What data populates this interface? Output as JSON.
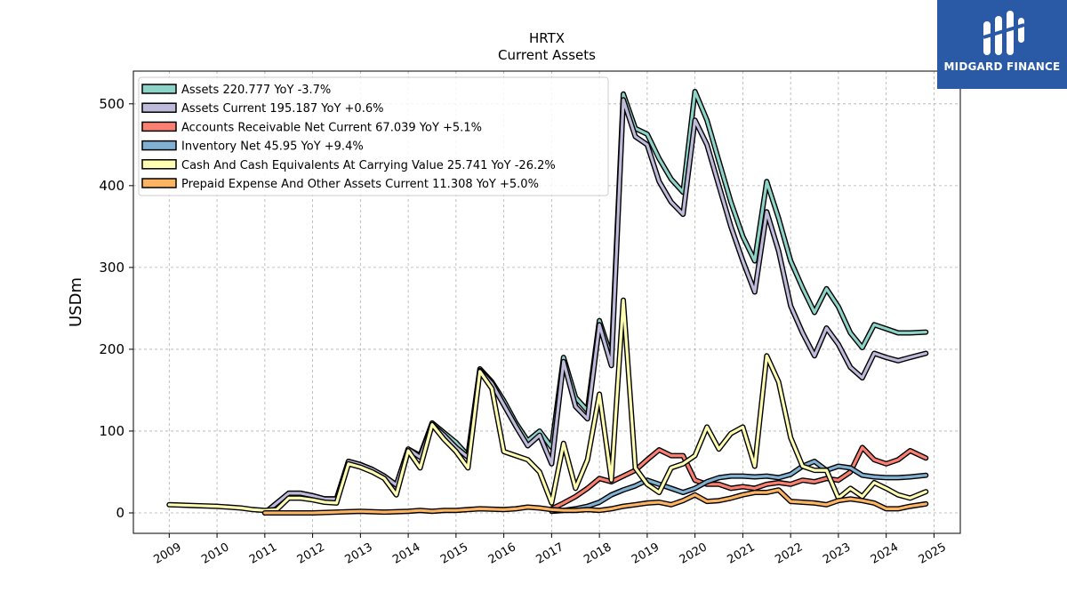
{
  "brand": {
    "name": "MIDGARD FINANCE",
    "icon": "midgard-logo-icon"
  },
  "chart_data": {
    "type": "line",
    "title": "HRTX",
    "subtitle": "Current  Assets",
    "xlabel": "",
    "ylabel": "USDm",
    "xlim": [
      2008.25,
      2025.55
    ],
    "ylim": [
      -25,
      540
    ],
    "yticks": [
      0,
      100,
      200,
      300,
      400,
      500
    ],
    "xticks": [
      2009,
      2010,
      2011,
      2012,
      2013,
      2014,
      2015,
      2016,
      2017,
      2018,
      2019,
      2020,
      2021,
      2022,
      2023,
      2024,
      2025
    ],
    "grid": true,
    "legend_position": "top-left",
    "series": [
      {
        "name": "Assets  220.777 YoY -3.7%",
        "color": "#8dd3c7",
        "x": [
          2011.0,
          2011.5,
          2011.75,
          2012.0,
          2012.25,
          2012.5,
          2012.75,
          2013.0,
          2013.25,
          2013.5,
          2013.75,
          2014.0,
          2014.25,
          2014.5,
          2014.75,
          2015.0,
          2015.25,
          2015.5,
          2015.75,
          2016.0,
          2016.25,
          2016.5,
          2016.75,
          2017.0,
          2017.25,
          2017.5,
          2017.75,
          2018.0,
          2018.25,
          2018.5,
          2018.75,
          2019.0,
          2019.25,
          2019.5,
          2019.75,
          2020.0,
          2020.25,
          2020.5,
          2020.75,
          2021.0,
          2021.25,
          2021.5,
          2021.75,
          2022.0,
          2022.25,
          2022.5,
          2022.75,
          2023.0,
          2023.25,
          2023.5,
          2023.75,
          2024.0,
          2024.25,
          2024.5,
          2024.83
        ],
        "values": [
          0,
          24,
          24,
          21,
          17,
          17,
          63,
          59,
          53,
          45,
          34,
          78,
          70,
          110,
          98,
          86,
          70,
          176,
          160,
          137,
          110,
          88,
          100,
          80,
          190,
          141,
          125,
          235,
          190,
          512,
          470,
          463,
          433,
          408,
          392,
          515,
          480,
          430,
          380,
          338,
          308,
          405,
          360,
          308,
          275,
          245,
          274,
          252,
          220,
          202,
          230,
          225,
          220,
          220,
          221
        ]
      },
      {
        "name": "Assets Current  195.187 YoY +0.6%",
        "color": "#bebada",
        "x": [
          2011.0,
          2011.5,
          2011.75,
          2012.0,
          2012.25,
          2012.5,
          2012.75,
          2013.0,
          2013.25,
          2013.5,
          2013.75,
          2014.0,
          2014.25,
          2014.5,
          2014.75,
          2015.0,
          2015.25,
          2015.5,
          2015.75,
          2016.0,
          2016.25,
          2016.5,
          2016.75,
          2017.0,
          2017.25,
          2017.5,
          2017.75,
          2018.0,
          2018.25,
          2018.5,
          2018.75,
          2019.0,
          2019.25,
          2019.5,
          2019.75,
          2020.0,
          2020.25,
          2020.5,
          2020.75,
          2021.0,
          2021.25,
          2021.5,
          2021.75,
          2022.0,
          2022.25,
          2022.5,
          2022.75,
          2023.0,
          2023.25,
          2023.5,
          2023.75,
          2024.0,
          2024.25,
          2024.5,
          2024.83
        ],
        "values": [
          0,
          24,
          24,
          21,
          17,
          17,
          63,
          59,
          53,
          45,
          34,
          78,
          68,
          108,
          95,
          80,
          68,
          174,
          158,
          132,
          106,
          82,
          95,
          60,
          185,
          130,
          115,
          230,
          180,
          505,
          460,
          450,
          405,
          380,
          365,
          480,
          450,
          400,
          350,
          308,
          270,
          368,
          320,
          253,
          220,
          192,
          226,
          206,
          178,
          165,
          195,
          190,
          186,
          190,
          195
        ]
      },
      {
        "name": "Accounts Receivable Net Current  67.039 YoY +5.1%",
        "color": "#fb8072",
        "x": [
          2017.0,
          2017.25,
          2017.5,
          2017.75,
          2018.0,
          2018.25,
          2018.5,
          2018.75,
          2019.0,
          2019.25,
          2019.5,
          2019.75,
          2020.0,
          2020.25,
          2020.5,
          2020.75,
          2021.0,
          2021.25,
          2021.5,
          2021.75,
          2022.0,
          2022.25,
          2022.5,
          2022.75,
          2023.0,
          2023.25,
          2023.5,
          2023.75,
          2024.0,
          2024.25,
          2024.5,
          2024.83
        ],
        "values": [
          5,
          12,
          20,
          30,
          42,
          38,
          45,
          52,
          65,
          77,
          70,
          70,
          40,
          35,
          35,
          30,
          32,
          30,
          35,
          37,
          35,
          40,
          38,
          42,
          40,
          50,
          80,
          65,
          60,
          65,
          76,
          67
        ]
      },
      {
        "name": "Inventory Net  45.95 YoY +9.4%",
        "color": "#80b1d3",
        "x": [
          2017.0,
          2017.25,
          2017.5,
          2017.75,
          2018.0,
          2018.25,
          2018.5,
          2018.75,
          2019.0,
          2019.25,
          2019.5,
          2019.75,
          2020.0,
          2020.25,
          2020.5,
          2020.75,
          2021.0,
          2021.25,
          2021.5,
          2021.75,
          2022.0,
          2022.25,
          2022.5,
          2022.75,
          2023.0,
          2023.25,
          2023.5,
          2023.75,
          2024.0,
          2024.25,
          2024.5,
          2024.83
        ],
        "values": [
          2,
          3,
          5,
          8,
          13,
          22,
          28,
          33,
          40,
          35,
          30,
          25,
          30,
          38,
          43,
          45,
          45,
          44,
          45,
          43,
          47,
          57,
          63,
          52,
          57,
          55,
          46,
          44,
          43,
          43,
          44,
          46
        ]
      },
      {
        "name": "Cash And Cash Equivalents At Carrying Value  25.741 YoY -26.2%",
        "color": "#ffffb3",
        "x": [
          2009.0,
          2009.5,
          2010.0,
          2010.5,
          2010.75,
          2011.0,
          2011.25,
          2011.5,
          2011.75,
          2012.0,
          2012.25,
          2012.5,
          2012.75,
          2013.0,
          2013.25,
          2013.5,
          2013.75,
          2014.0,
          2014.25,
          2014.5,
          2014.75,
          2015.0,
          2015.25,
          2015.5,
          2015.75,
          2016.0,
          2016.25,
          2016.5,
          2016.75,
          2017.0,
          2017.25,
          2017.5,
          2017.75,
          2018.0,
          2018.25,
          2018.5,
          2018.75,
          2019.0,
          2019.25,
          2019.5,
          2019.75,
          2020.0,
          2020.25,
          2020.5,
          2020.75,
          2021.0,
          2021.25,
          2021.5,
          2021.75,
          2022.0,
          2022.25,
          2022.5,
          2022.75,
          2023.0,
          2023.25,
          2023.5,
          2023.75,
          2024.0,
          2024.25,
          2024.5,
          2024.83
        ],
        "values": [
          10,
          9,
          8,
          6,
          4,
          3,
          4,
          18,
          18,
          16,
          13,
          12,
          60,
          56,
          50,
          42,
          22,
          76,
          55,
          108,
          90,
          75,
          55,
          173,
          152,
          75,
          70,
          65,
          50,
          12,
          85,
          30,
          65,
          145,
          40,
          260,
          55,
          35,
          25,
          55,
          60,
          70,
          105,
          78,
          97,
          105,
          57,
          192,
          160,
          92,
          57,
          52,
          52,
          18,
          30,
          20,
          37,
          30,
          22,
          18,
          26
        ]
      },
      {
        "name": "Prepaid Expense And Other Assets Current  11.308 YoY +5.0%",
        "color": "#fdb462",
        "x": [
          2011.0,
          2011.5,
          2012.0,
          2012.5,
          2013.0,
          2013.5,
          2014.0,
          2014.25,
          2014.5,
          2014.75,
          2015.0,
          2015.25,
          2015.5,
          2016.0,
          2016.25,
          2016.5,
          2016.75,
          2017.0,
          2017.25,
          2017.5,
          2017.75,
          2018.0,
          2018.25,
          2018.5,
          2018.75,
          2019.0,
          2019.25,
          2019.5,
          2019.75,
          2020.0,
          2020.25,
          2020.5,
          2020.75,
          2021.0,
          2021.25,
          2021.5,
          2021.75,
          2022.0,
          2022.25,
          2022.5,
          2022.75,
          2023.0,
          2023.25,
          2023.5,
          2023.75,
          2024.0,
          2024.25,
          2024.5,
          2024.83
        ],
        "values": [
          0,
          0,
          0,
          1,
          2,
          1,
          2,
          3,
          2,
          3,
          3,
          4,
          5,
          4,
          5,
          7,
          6,
          4,
          3,
          3,
          4,
          3,
          5,
          8,
          10,
          12,
          13,
          10,
          15,
          22,
          14,
          15,
          18,
          22,
          25,
          25,
          28,
          14,
          13,
          12,
          10,
          15,
          17,
          15,
          12,
          5,
          5,
          8,
          11
        ]
      }
    ]
  }
}
